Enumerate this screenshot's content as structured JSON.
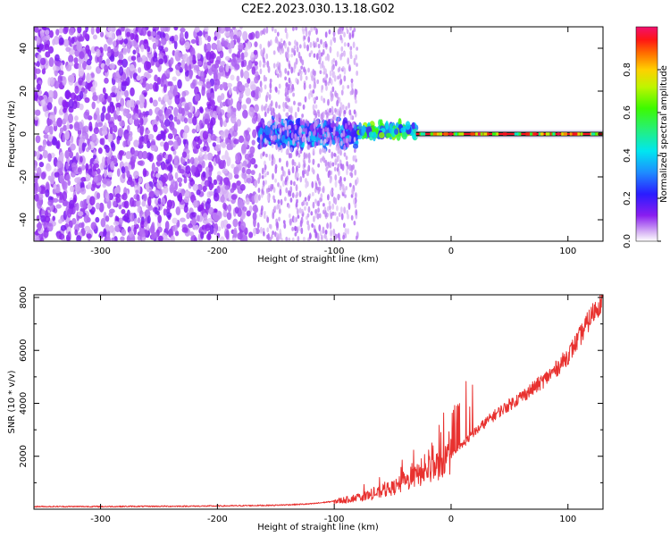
{
  "title": "C2E2.2023.030.13.18.G02",
  "colors": {
    "snr_line": "#e8312f",
    "frame": "#000000"
  },
  "chart_data": [
    {
      "type": "heatmap",
      "xlabel": "Height of straight line (km)",
      "ylabel": "Frequency (Hz)",
      "xlim": [
        -357,
        130
      ],
      "ylim": [
        -50,
        50
      ],
      "xticks": [
        -300,
        -200,
        -100,
        0,
        100
      ],
      "xtick_labels": [
        "-300",
        "-200",
        "-100",
        "0",
        "100"
      ],
      "yticks": [
        -40,
        -20,
        0,
        20,
        40
      ],
      "ytick_labels": [
        "-40",
        "-20",
        "0",
        "20",
        "40"
      ],
      "grid": false,
      "colorbar": {
        "label": "Normalized spectral amplitude",
        "range": [
          0,
          1
        ],
        "ticks": [
          0.0,
          0.2,
          0.4,
          0.6,
          0.8
        ],
        "tick_labels": [
          "0.0",
          "0.2",
          "0.4",
          "0.6",
          "0.8"
        ],
        "colormap": "rainbow (white-violet-blue-cyan-green-yellow-red-magenta)"
      },
      "regions": [
        {
          "x_range": [
            -357,
            -165
          ],
          "freq_range": [
            -50,
            50
          ],
          "amplitude": 0.1,
          "desc": "broadband noise"
        },
        {
          "x_range": [
            -165,
            -80
          ],
          "freq_range": [
            -8,
            8
          ],
          "amplitude": 0.3
        },
        {
          "x_range": [
            -80,
            -30
          ],
          "freq_range": [
            -3,
            6
          ],
          "amplitude": 0.5
        },
        {
          "x_range": [
            -30,
            130
          ],
          "freq_range": [
            -0.5,
            0.5
          ],
          "amplitude": 0.95,
          "desc": "carrier line"
        }
      ]
    },
    {
      "type": "line",
      "xlabel": "Height of straight line (km)",
      "ylabel": "SNR (10 * v/v)",
      "xlim": [
        -357,
        130
      ],
      "ylim": [
        0,
        8100
      ],
      "xticks": [
        -300,
        -200,
        -100,
        0,
        100
      ],
      "xtick_labels": [
        "-300",
        "-200",
        "-100",
        "0",
        "100"
      ],
      "yticks": [
        2000,
        4000,
        6000,
        8000
      ],
      "ytick_labels": [
        "2000",
        "4000",
        "6000",
        "8000"
      ],
      "grid": false,
      "series": [
        {
          "x": [
            -357,
            -300,
            -250,
            -200,
            -150,
            -120,
            -100,
            -90,
            -80,
            -70,
            -60,
            -50,
            -40,
            -30,
            -20,
            -10,
            0,
            10,
            20,
            30,
            40,
            50,
            60,
            70,
            80,
            90,
            100,
            110,
            120,
            130
          ],
          "y": [
            100,
            100,
            110,
            120,
            150,
            200,
            300,
            350,
            450,
            500,
            650,
            800,
            1000,
            1250,
            1450,
            1700,
            2000,
            2450,
            2900,
            3300,
            3650,
            3950,
            4250,
            4550,
            4900,
            5300,
            5800,
            6500,
            7300,
            8000
          ]
        }
      ]
    }
  ]
}
